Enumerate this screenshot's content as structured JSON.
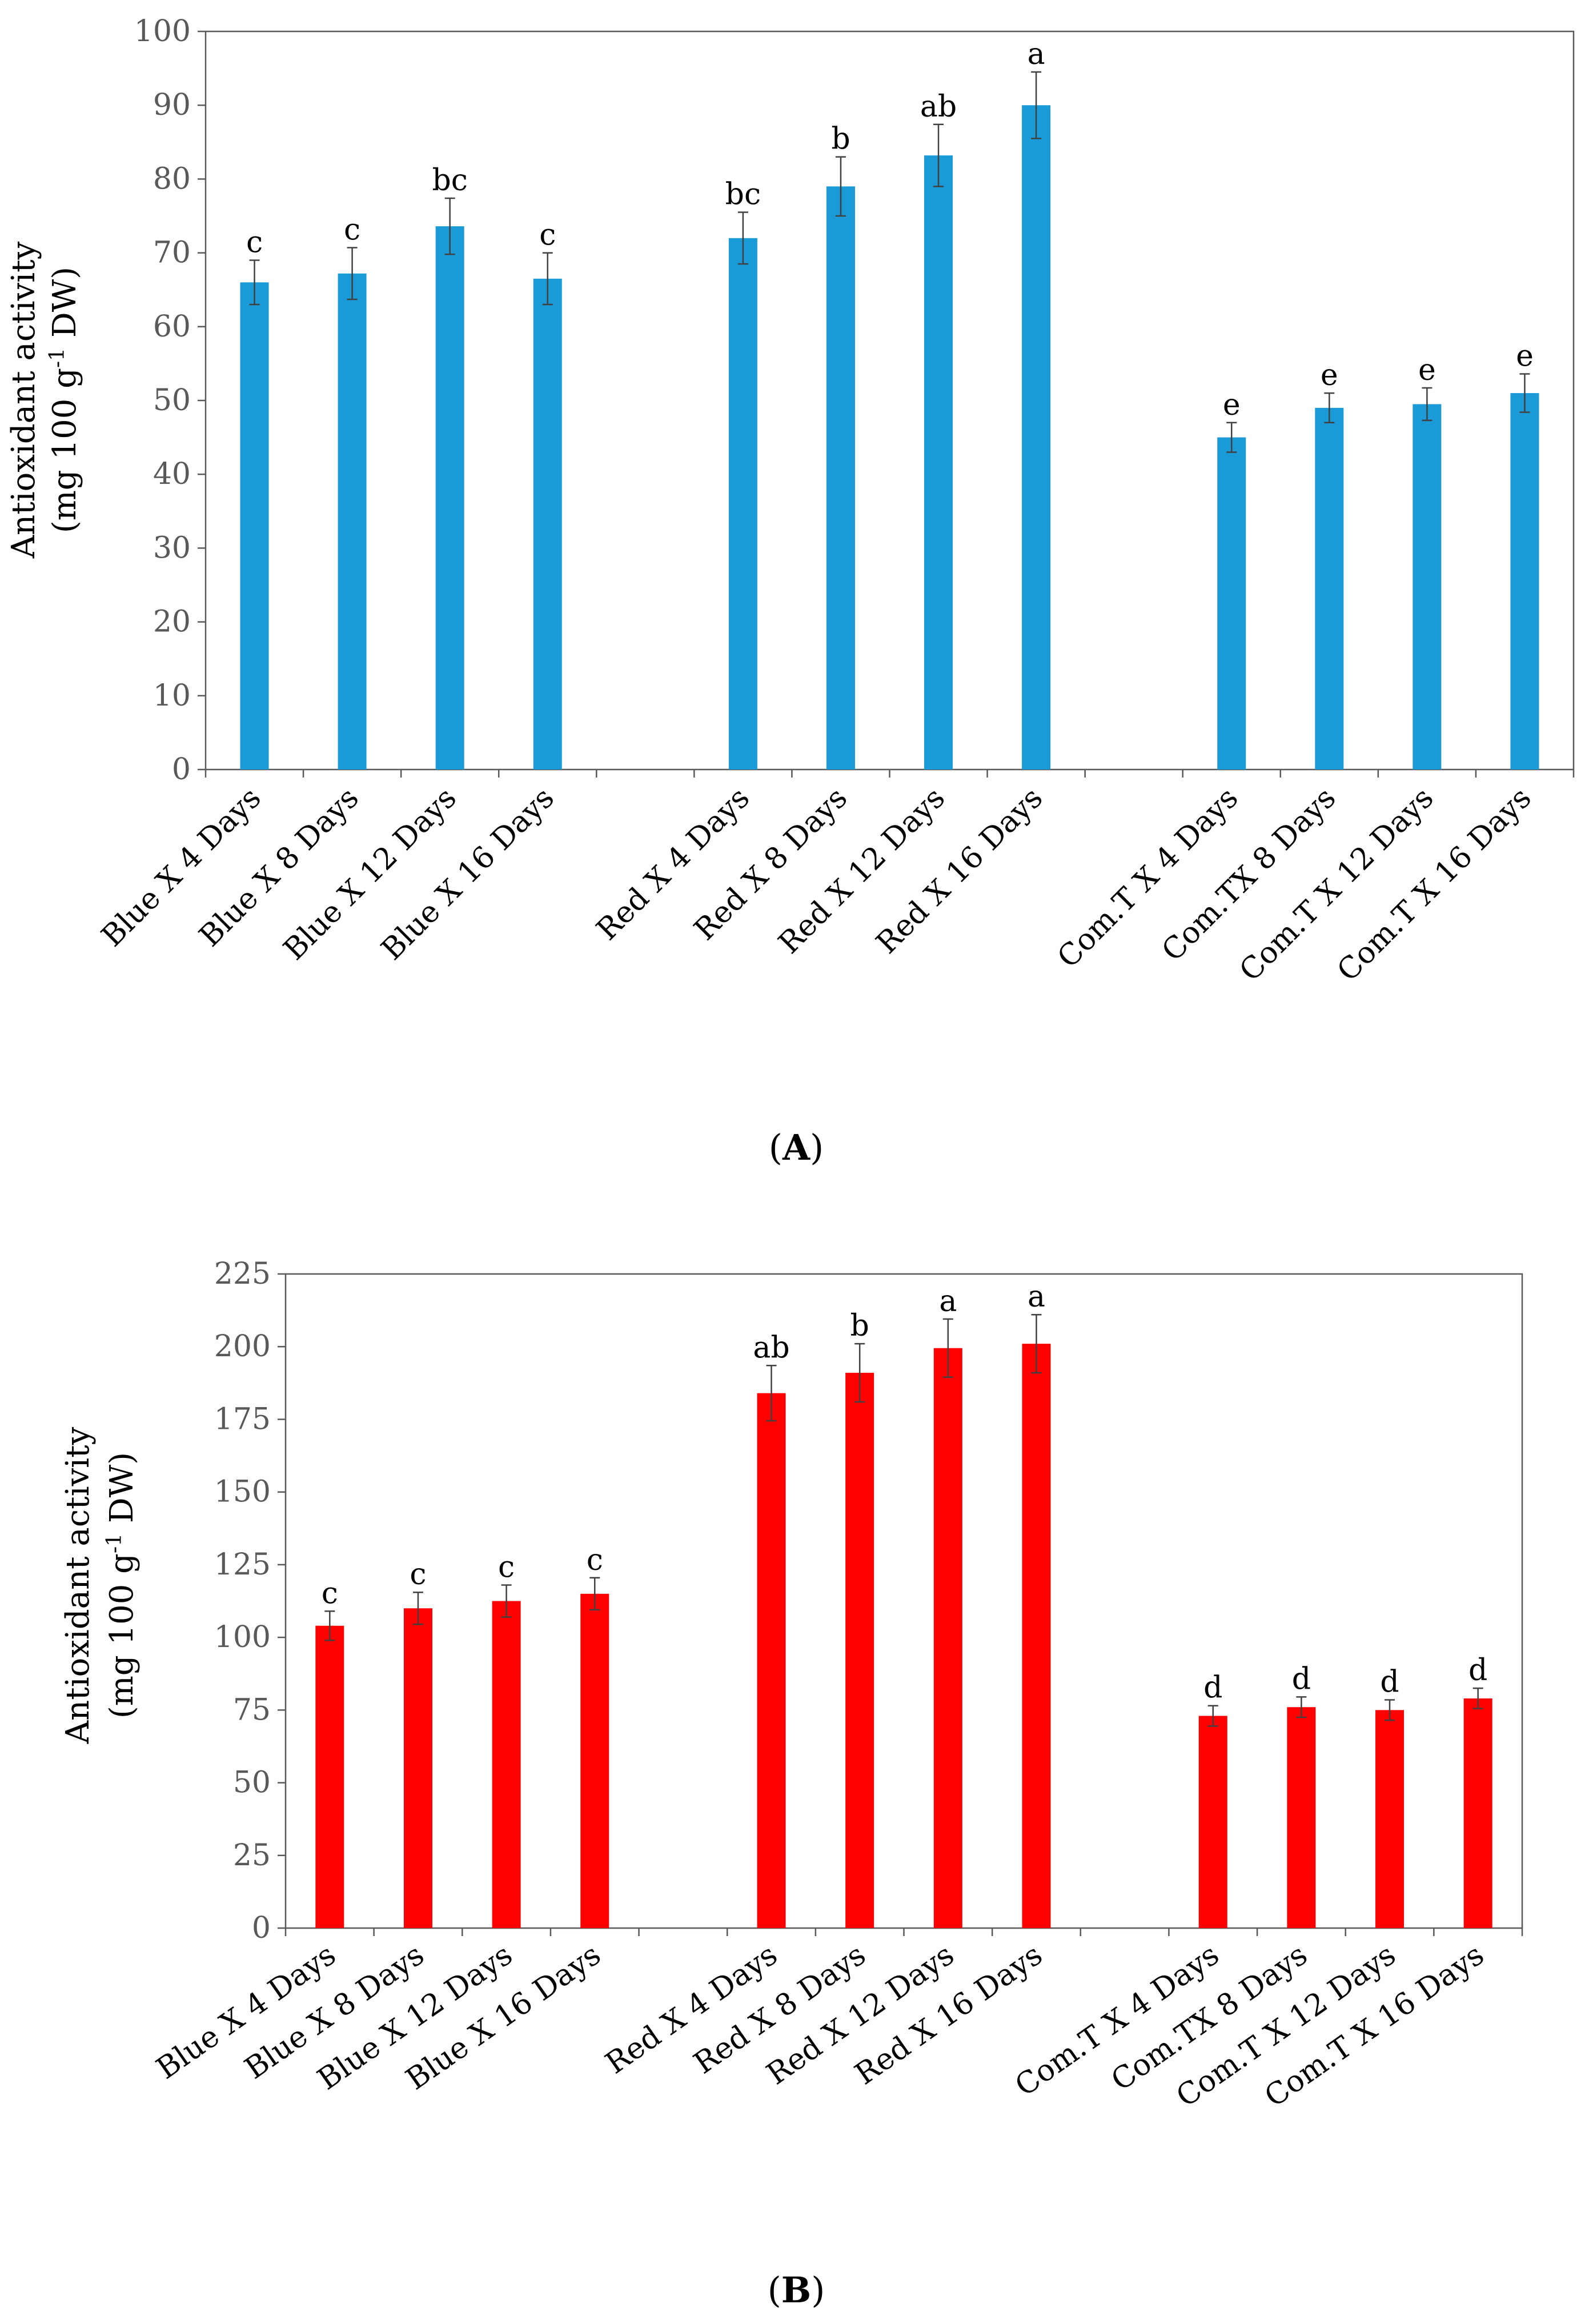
{
  "chart_data": [
    {
      "type": "bar",
      "panel": "A",
      "caption": {
        "open": "(",
        "letter": "A",
        "close": ")"
      },
      "ylabel_line1": "Antioxidant activity",
      "ylabel_line2_pre": "(mg 100 g",
      "ylabel_line2_sup": "-1",
      "ylabel_line2_post": " DW)",
      "ylim": [
        0,
        100
      ],
      "yticks": [
        0,
        10,
        20,
        30,
        40,
        50,
        60,
        70,
        80,
        90,
        100
      ],
      "color": "#1a9ad6",
      "categories": [
        "Blue X 4 Days",
        "Blue X 8 Days",
        "Blue X 12 Days",
        "Blue X 16 Days",
        "",
        "Red X 4 Days",
        "Red X 8 Days",
        "Red X 12 Days",
        "Red X 16 Days",
        "",
        "Com.T X 4 Days",
        "Com.TX 8 Days",
        "Com.T X 12 Days",
        "Com.T  X 16 Days"
      ],
      "values": [
        66,
        67.2,
        73.6,
        66.5,
        null,
        72,
        79,
        83.2,
        90,
        null,
        45,
        49,
        49.5,
        51
      ],
      "errors": [
        3,
        3.5,
        3.8,
        3.5,
        null,
        3.5,
        4,
        4.2,
        4.5,
        null,
        2,
        2,
        2.2,
        2.6
      ],
      "significance": [
        "c",
        "c",
        "bc",
        "c",
        "",
        "bc",
        "b",
        "ab",
        "a",
        "",
        "e",
        "e",
        "e",
        "e"
      ]
    },
    {
      "type": "bar",
      "panel": "B",
      "caption": {
        "open": "(",
        "letter": "B",
        "close": ")"
      },
      "ylabel_line1": "Antioxidant activity",
      "ylabel_line2_pre": "(mg 100 g",
      "ylabel_line2_sup": "-1",
      "ylabel_line2_post": " DW)",
      "ylim": [
        0,
        225
      ],
      "yticks": [
        0,
        25,
        50,
        75,
        100,
        125,
        150,
        175,
        200,
        225
      ],
      "color": "#ff0000",
      "categories": [
        "Blue X 4 Days",
        "Blue X 8 Days",
        "Blue X 12 Days",
        "Blue X 16 Days",
        "",
        "Red X 4 Days",
        "Red X 8 Days",
        "Red X 12 Days",
        "Red X 16 Days",
        "",
        "Com.T X 4 Days",
        "Com.TX 8 Days",
        "Com.T X 12 Days",
        "Com.T  X 16 Days"
      ],
      "values": [
        104,
        110,
        112.5,
        115,
        null,
        184,
        191,
        199.5,
        201,
        null,
        73,
        76,
        75,
        79
      ],
      "errors": [
        5,
        5.5,
        5.5,
        5.5,
        null,
        9.5,
        10,
        10,
        10,
        null,
        3.5,
        3.5,
        3.5,
        3.5
      ],
      "significance": [
        "c",
        "c",
        "c",
        "c",
        "",
        "ab",
        "b",
        "a",
        "a",
        "",
        "d",
        "d",
        "d",
        "d"
      ]
    }
  ]
}
